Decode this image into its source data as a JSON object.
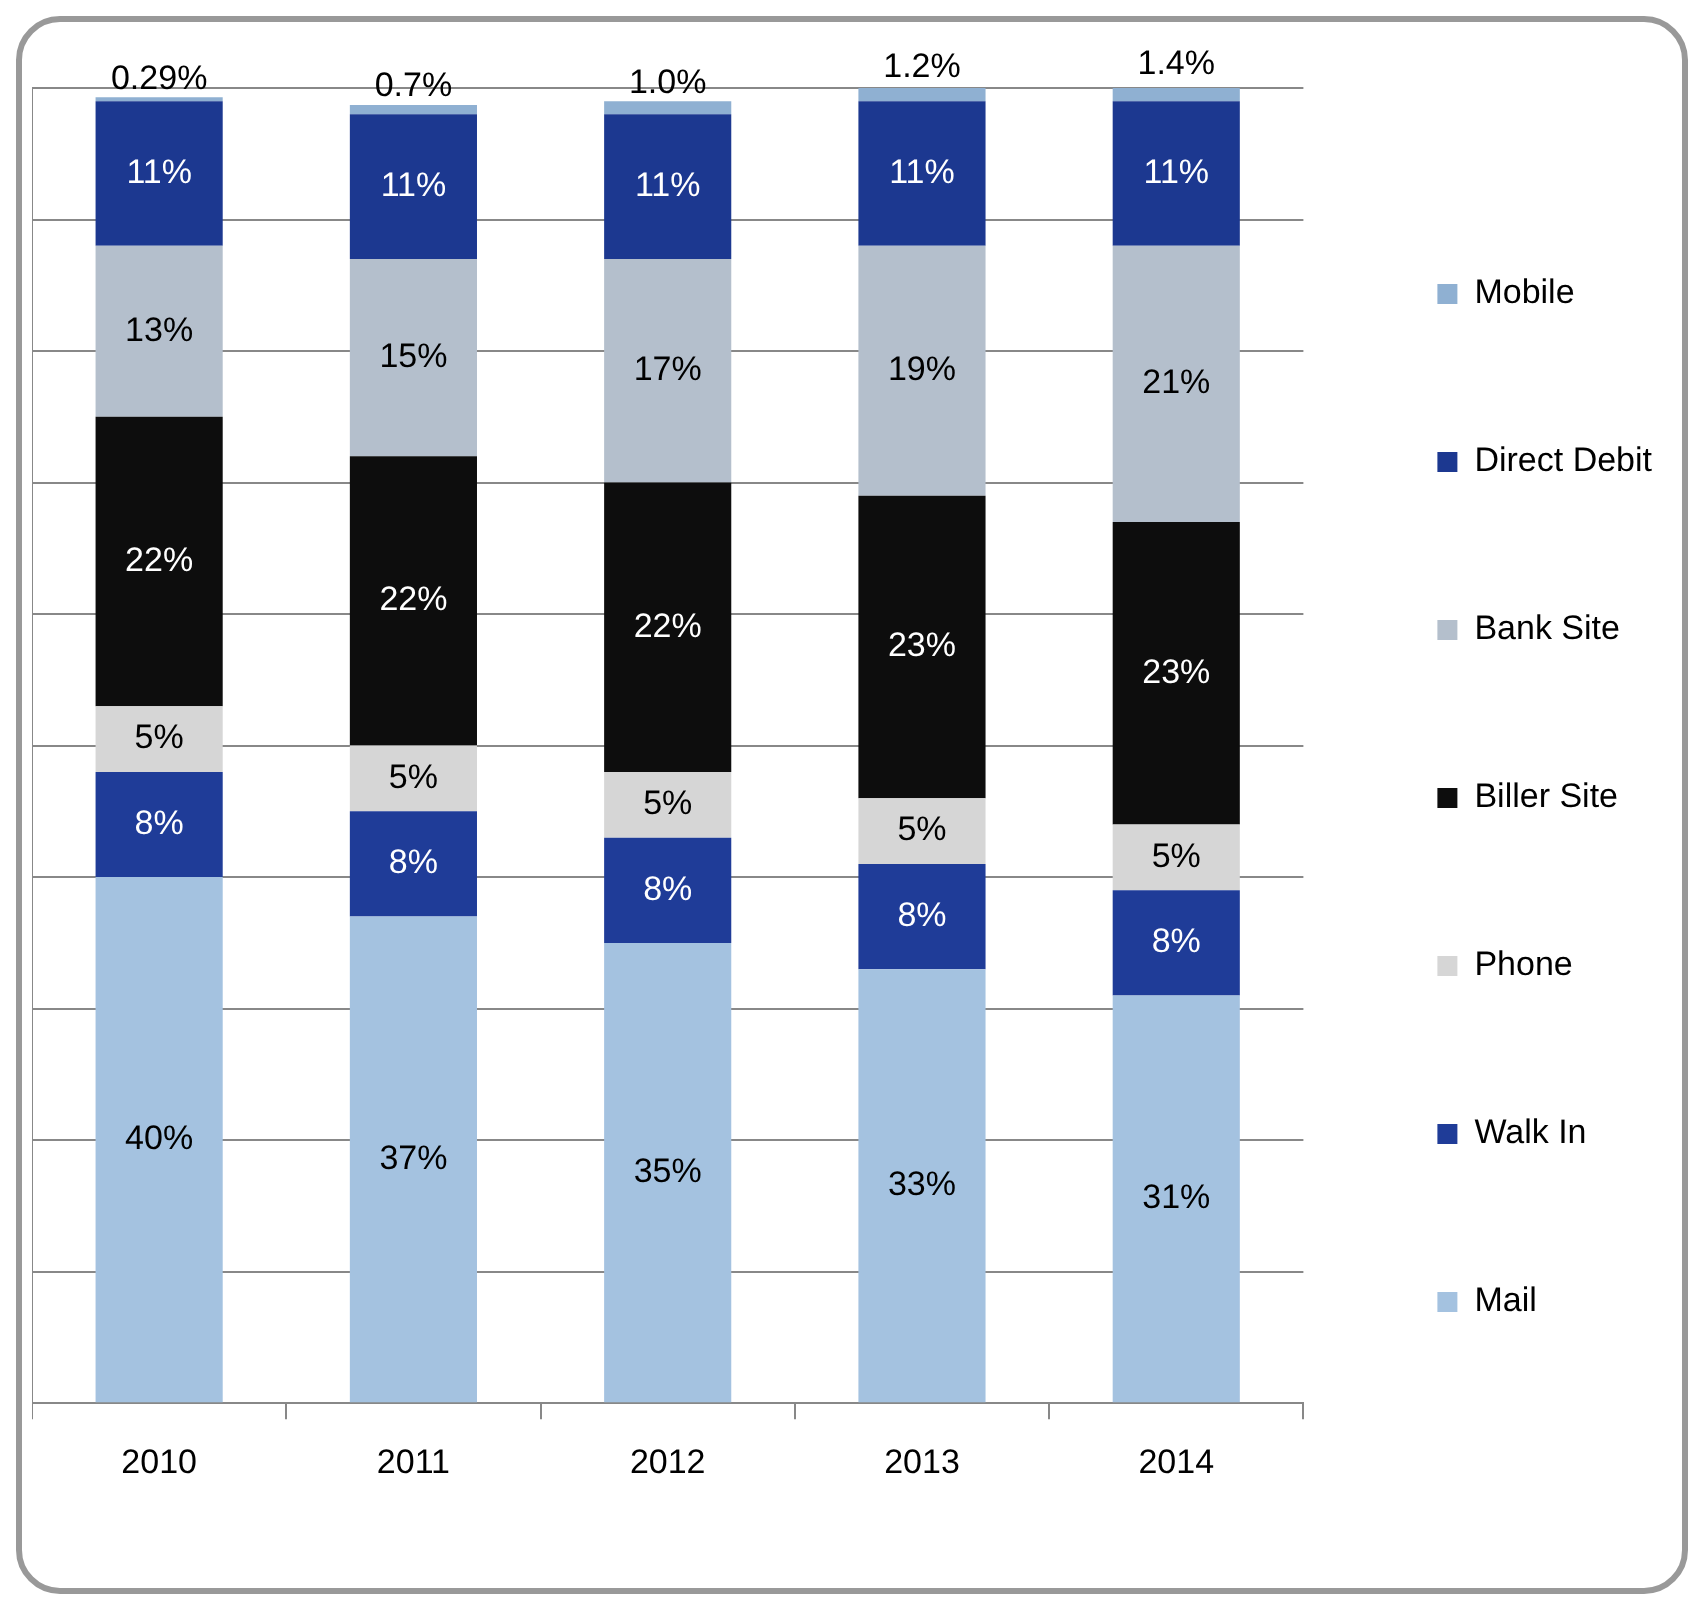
{
  "chart_data": {
    "type": "bar",
    "stacked": true,
    "categories": [
      "2010",
      "2011",
      "2012",
      "2013",
      "2014"
    ],
    "series": [
      {
        "name": "Mail",
        "color": "#a4c2e0",
        "values": [
          40,
          37,
          35,
          33,
          31
        ],
        "value_labels": [
          "40%",
          "37%",
          "35%",
          "33%",
          "31%"
        ]
      },
      {
        "name": "Walk In",
        "color": "#1f3c98",
        "values": [
          8,
          8,
          8,
          8,
          8
        ],
        "value_labels": [
          "8%",
          "8%",
          "8%",
          "8%",
          "8%"
        ]
      },
      {
        "name": "Phone",
        "color": "#d6d6d6",
        "values": [
          5,
          5,
          5,
          5,
          5
        ],
        "value_labels": [
          "5%",
          "5%",
          "5%",
          "5%",
          "5%"
        ]
      },
      {
        "name": "Biller Site",
        "color": "#0d0d0d",
        "values": [
          22,
          22,
          22,
          23,
          23
        ],
        "value_labels": [
          "22%",
          "22%",
          "22%",
          "23%",
          "23%"
        ]
      },
      {
        "name": "Bank Site",
        "color": "#b4bfcc",
        "values": [
          13,
          15,
          17,
          19,
          21
        ],
        "value_labels": [
          "13%",
          "15%",
          "17%",
          "19%",
          "21%"
        ]
      },
      {
        "name": "Direct Debit",
        "color": "#1c3890",
        "values": [
          11,
          11,
          11,
          11,
          11
        ],
        "value_labels": [
          "11%",
          "11%",
          "11%",
          "11%",
          "11%"
        ]
      },
      {
        "name": "Mobile",
        "color": "#8fb0d2",
        "values": [
          0.29,
          0.7,
          1.0,
          1.2,
          1.4
        ],
        "value_labels": [
          "0.29%",
          "0.7%",
          "1.0%",
          "1.2%",
          "1.4%"
        ]
      }
    ],
    "ylim": [
      0,
      100
    ],
    "yticks": [
      {
        "value": 0,
        "label": null
      },
      {
        "value": 10,
        "label": null
      },
      {
        "value": 20,
        "label": null
      },
      {
        "value": 30,
        "label": null
      },
      {
        "value": 40,
        "label": null
      },
      {
        "value": 50,
        "label": null
      },
      {
        "value": 60,
        "label": null
      },
      {
        "value": 70,
        "label": null
      },
      {
        "value": 80,
        "label": null
      },
      {
        "value": 90,
        "label": null
      },
      {
        "value": 100,
        "label": null
      }
    ],
    "tick_labels": "x",
    "grid": "y",
    "legend": "right"
  }
}
